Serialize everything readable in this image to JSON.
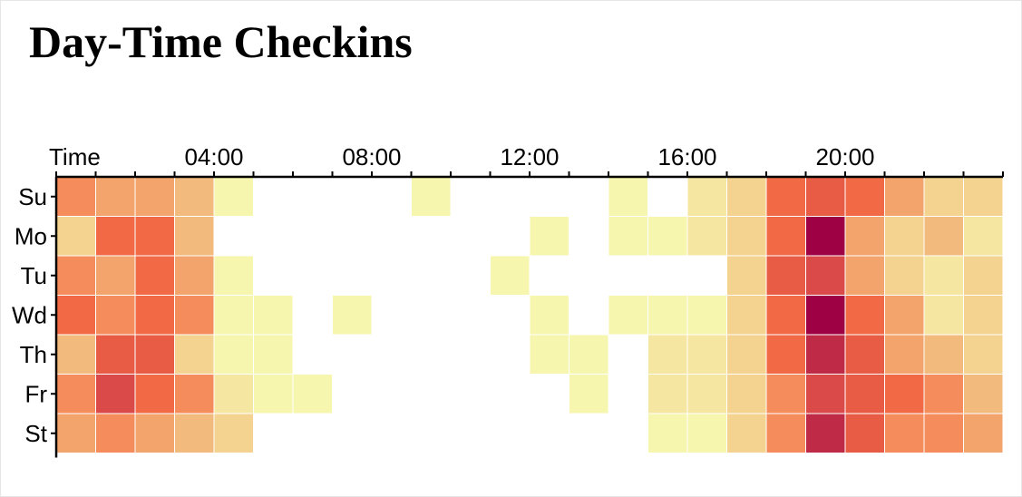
{
  "title": "Day-Time Checkins",
  "chart_data": {
    "type": "heatmap",
    "title": "Day-Time Checkins",
    "x_label": "Time",
    "x_tick_labels": [
      "04:00",
      "08:00",
      "12:00",
      "16:00",
      "20:00"
    ],
    "x_tick_hours": [
      4,
      8,
      12,
      16,
      20
    ],
    "hours": [
      0,
      1,
      2,
      3,
      4,
      5,
      6,
      7,
      8,
      9,
      10,
      11,
      12,
      13,
      14,
      15,
      16,
      17,
      18,
      19,
      20,
      21,
      22,
      23
    ],
    "days": [
      "Su",
      "Mo",
      "Tu",
      "Wd",
      "Th",
      "Fr",
      "St"
    ],
    "value_scale": "0 = empty, 1 = lightest yellow, 11 = darkest red",
    "values": [
      [
        6,
        5,
        5,
        4,
        1,
        0,
        0,
        0,
        0,
        1,
        0,
        0,
        0,
        0,
        1,
        0,
        2,
        3,
        7,
        8,
        7,
        5,
        3,
        3
      ],
      [
        3,
        7,
        7,
        4,
        0,
        0,
        0,
        0,
        0,
        0,
        0,
        0,
        1,
        0,
        1,
        1,
        2,
        3,
        7,
        11,
        5,
        3,
        4,
        2
      ],
      [
        6,
        5,
        7,
        5,
        1,
        0,
        0,
        0,
        0,
        0,
        0,
        1,
        0,
        0,
        0,
        0,
        0,
        3,
        8,
        9,
        5,
        3,
        2,
        3
      ],
      [
        7,
        6,
        7,
        6,
        1,
        1,
        0,
        1,
        0,
        0,
        0,
        0,
        1,
        0,
        1,
        1,
        1,
        3,
        7,
        11,
        7,
        5,
        2,
        3
      ],
      [
        4,
        8,
        8,
        3,
        1,
        1,
        0,
        0,
        0,
        0,
        0,
        0,
        1,
        1,
        0,
        2,
        2,
        3,
        7,
        10,
        8,
        5,
        4,
        3
      ],
      [
        6,
        9,
        7,
        6,
        2,
        1,
        1,
        0,
        0,
        0,
        0,
        0,
        0,
        1,
        0,
        2,
        2,
        3,
        6,
        9,
        8,
        7,
        6,
        4
      ],
      [
        5,
        6,
        5,
        4,
        3,
        0,
        0,
        0,
        0,
        0,
        0,
        0,
        0,
        0,
        0,
        1,
        1,
        3,
        6,
        10,
        8,
        6,
        6,
        5
      ]
    ],
    "colorscale": [
      "#ffffff",
      "#f7f6ae",
      "#f5e6a1",
      "#f3d38f",
      "#f2ba7d",
      "#f3a46c",
      "#f58c5b",
      "#f26a45",
      "#e85c46",
      "#da4a48",
      "#bf2b46",
      "#9e0144"
    ]
  }
}
